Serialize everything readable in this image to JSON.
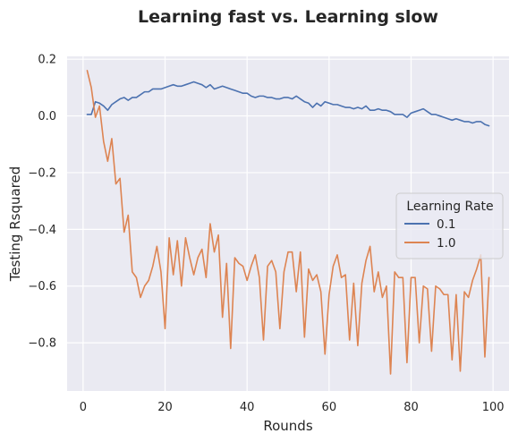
{
  "chart_data": {
    "type": "line",
    "title": "Learning fast vs. Learning slow",
    "xlabel": "Rounds",
    "ylabel": "Testing Rsquared",
    "xlim": [
      -3.9,
      103.9
    ],
    "ylim": [
      -0.97,
      0.21
    ],
    "xticks": [
      0,
      20,
      40,
      60,
      80,
      100
    ],
    "xtick_labels": [
      "0",
      "20",
      "40",
      "60",
      "80",
      "100"
    ],
    "yticks": [
      -0.8,
      -0.6,
      -0.4,
      -0.2,
      0.0,
      0.2
    ],
    "ytick_labels": [
      "−0.8",
      "−0.6",
      "−0.4",
      "−0.2",
      "0.0",
      "0.2"
    ],
    "grid": true,
    "legend": {
      "title": "Learning Rate",
      "placement": "center-right"
    },
    "colors": {
      "background": "#eaeaf2",
      "grid": "#ffffff",
      "text": "#262626"
    },
    "series": [
      {
        "name": "0.1",
        "color": "#4c72b0",
        "x": [
          1,
          2,
          3,
          4,
          5,
          6,
          7,
          8,
          9,
          10,
          11,
          12,
          13,
          14,
          15,
          16,
          17,
          18,
          19,
          20,
          21,
          22,
          23,
          24,
          25,
          26,
          27,
          28,
          29,
          30,
          31,
          32,
          33,
          34,
          35,
          36,
          37,
          38,
          39,
          40,
          41,
          42,
          43,
          44,
          45,
          46,
          47,
          48,
          49,
          50,
          51,
          52,
          53,
          54,
          55,
          56,
          57,
          58,
          59,
          60,
          61,
          62,
          63,
          64,
          65,
          66,
          67,
          68,
          69,
          70,
          71,
          72,
          73,
          74,
          75,
          76,
          77,
          78,
          79,
          80,
          81,
          82,
          83,
          84,
          85,
          86,
          87,
          88,
          89,
          90,
          91,
          92,
          93,
          94,
          95,
          96,
          97,
          98,
          99
        ],
        "y": [
          0.005,
          0.005,
          0.05,
          0.045,
          0.035,
          0.02,
          0.04,
          0.05,
          0.06,
          0.065,
          0.055,
          0.065,
          0.065,
          0.075,
          0.085,
          0.085,
          0.095,
          0.095,
          0.095,
          0.1,
          0.105,
          0.11,
          0.105,
          0.105,
          0.11,
          0.115,
          0.12,
          0.115,
          0.11,
          0.1,
          0.11,
          0.095,
          0.1,
          0.105,
          0.1,
          0.095,
          0.09,
          0.085,
          0.08,
          0.08,
          0.07,
          0.065,
          0.07,
          0.07,
          0.065,
          0.065,
          0.06,
          0.06,
          0.065,
          0.065,
          0.06,
          0.07,
          0.06,
          0.05,
          0.045,
          0.03,
          0.045,
          0.035,
          0.05,
          0.045,
          0.04,
          0.04,
          0.035,
          0.03,
          0.03,
          0.025,
          0.03,
          0.025,
          0.035,
          0.02,
          0.02,
          0.025,
          0.02,
          0.02,
          0.015,
          0.005,
          0.005,
          0.005,
          -0.005,
          0.01,
          0.015,
          0.02,
          0.025,
          0.015,
          0.005,
          0.005,
          0.0,
          -0.005,
          -0.01,
          -0.015,
          -0.01,
          -0.015,
          -0.02,
          -0.02,
          -0.025,
          -0.02,
          -0.02,
          -0.03,
          -0.035
        ]
      },
      {
        "name": "1.0",
        "color": "#dd8452",
        "x": [
          1,
          2,
          3,
          4,
          5,
          6,
          7,
          8,
          9,
          10,
          11,
          12,
          13,
          14,
          15,
          16,
          17,
          18,
          19,
          20,
          21,
          22,
          23,
          24,
          25,
          26,
          27,
          28,
          29,
          30,
          31,
          32,
          33,
          34,
          35,
          36,
          37,
          38,
          39,
          40,
          41,
          42,
          43,
          44,
          45,
          46,
          47,
          48,
          49,
          50,
          51,
          52,
          53,
          54,
          55,
          56,
          57,
          58,
          59,
          60,
          61,
          62,
          63,
          64,
          65,
          66,
          67,
          68,
          69,
          70,
          71,
          72,
          73,
          74,
          75,
          76,
          77,
          78,
          79,
          80,
          81,
          82,
          83,
          84,
          85,
          86,
          87,
          88,
          89,
          90,
          91,
          92,
          93,
          94,
          95,
          96,
          97,
          98,
          99
        ],
        "y": [
          0.16,
          0.1,
          -0.005,
          0.035,
          -0.09,
          -0.16,
          -0.08,
          -0.24,
          -0.22,
          -0.41,
          -0.35,
          -0.55,
          -0.57,
          -0.64,
          -0.6,
          -0.58,
          -0.53,
          -0.46,
          -0.55,
          -0.75,
          -0.43,
          -0.56,
          -0.44,
          -0.6,
          -0.43,
          -0.5,
          -0.56,
          -0.5,
          -0.47,
          -0.57,
          -0.38,
          -0.48,
          -0.42,
          -0.71,
          -0.52,
          -0.82,
          -0.5,
          -0.52,
          -0.53,
          -0.58,
          -0.53,
          -0.49,
          -0.57,
          -0.79,
          -0.53,
          -0.51,
          -0.55,
          -0.75,
          -0.55,
          -0.48,
          -0.48,
          -0.62,
          -0.48,
          -0.78,
          -0.54,
          -0.58,
          -0.56,
          -0.62,
          -0.84,
          -0.63,
          -0.53,
          -0.49,
          -0.57,
          -0.56,
          -0.79,
          -0.59,
          -0.81,
          -0.59,
          -0.51,
          -0.46,
          -0.62,
          -0.55,
          -0.64,
          -0.6,
          -0.91,
          -0.55,
          -0.57,
          -0.57,
          -0.87,
          -0.57,
          -0.57,
          -0.8,
          -0.6,
          -0.61,
          -0.83,
          -0.6,
          -0.61,
          -0.63,
          -0.63,
          -0.86,
          -0.63,
          -0.9,
          -0.62,
          -0.64,
          -0.58,
          -0.54,
          -0.49,
          -0.85,
          -0.57
        ]
      }
    ]
  }
}
